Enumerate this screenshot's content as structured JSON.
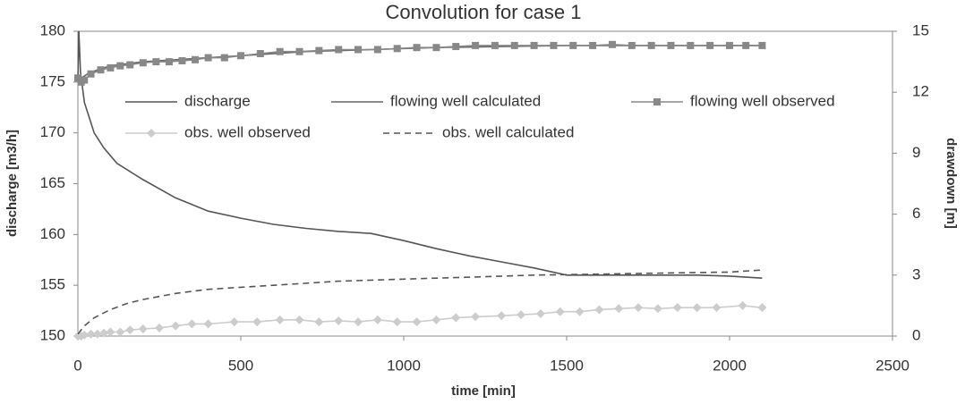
{
  "chart_data": {
    "type": "line",
    "title": "Convolution for case 1",
    "xlabel": "time [min]",
    "ylabel": "discharge [m3/h]",
    "y2label": "drawdown [m]",
    "xlim": [
      0,
      2500
    ],
    "xticks": [
      0,
      500,
      1000,
      1500,
      2000,
      2500
    ],
    "ylim": [
      150,
      180
    ],
    "yticks": [
      150,
      155,
      160,
      165,
      170,
      175,
      180
    ],
    "y2lim": [
      0,
      15
    ],
    "y2ticks": [
      0,
      3,
      6,
      9,
      12,
      15
    ],
    "legend": "upper center",
    "series": [
      {
        "name": "discharge",
        "color": "#555555",
        "axis": "y",
        "dash": "solid",
        "marker": "none",
        "x": [
          0,
          3,
          8,
          20,
          50,
          80,
          120,
          200,
          300,
          400,
          500,
          600,
          700,
          800,
          900,
          1000,
          1100,
          1200,
          1300,
          1400,
          1500,
          1600,
          1700,
          1800,
          1900,
          2000,
          2100
        ],
        "values": [
          175,
          180,
          176,
          173,
          170,
          168.5,
          167,
          165.4,
          163.6,
          162.3,
          161.6,
          161,
          160.6,
          160.3,
          160.1,
          159.4,
          158.6,
          157.9,
          157.3,
          156.7,
          156,
          156,
          156,
          156,
          156,
          155.9,
          155.7
        ]
      },
      {
        "name": "flowing well calculated",
        "color": "#666666",
        "axis": "y2",
        "dash": "solid",
        "marker": "none",
        "x": [
          0,
          10,
          30,
          60,
          100,
          150,
          200,
          300,
          400,
          500,
          700,
          900,
          1100,
          1300,
          1500,
          1700,
          1900,
          2100
        ],
        "values": [
          12.5,
          12.7,
          12.9,
          13.1,
          13.3,
          13.4,
          13.5,
          13.6,
          13.7,
          13.8,
          14.0,
          14.1,
          14.2,
          14.25,
          14.3,
          14.3,
          14.3,
          14.3
        ]
      },
      {
        "name": "flowing well observed",
        "color": "#888888",
        "axis": "y2",
        "dash": "solid",
        "marker": "square",
        "x": [
          0,
          10,
          20,
          40,
          70,
          100,
          130,
          160,
          200,
          240,
          280,
          320,
          360,
          400,
          450,
          500,
          560,
          620,
          680,
          740,
          800,
          860,
          920,
          980,
          1040,
          1100,
          1160,
          1220,
          1280,
          1340,
          1400,
          1460,
          1520,
          1580,
          1640,
          1700,
          1760,
          1820,
          1880,
          1940,
          2000,
          2050,
          2100
        ],
        "values": [
          12.7,
          12.5,
          12.6,
          12.9,
          13.1,
          13.2,
          13.3,
          13.35,
          13.45,
          13.5,
          13.5,
          13.55,
          13.6,
          13.7,
          13.7,
          13.8,
          13.9,
          14,
          14,
          14.05,
          14.1,
          14.1,
          14.1,
          14.15,
          14.2,
          14.2,
          14.25,
          14.3,
          14.3,
          14.3,
          14.3,
          14.3,
          14.3,
          14.3,
          14.35,
          14.3,
          14.3,
          14.3,
          14.3,
          14.3,
          14.3,
          14.3,
          14.3
        ]
      },
      {
        "name": "obs. well observed",
        "color": "#cccccc",
        "axis": "y2",
        "dash": "solid",
        "marker": "diamond",
        "x": [
          0,
          10,
          20,
          40,
          60,
          80,
          100,
          130,
          160,
          200,
          250,
          300,
          350,
          400,
          480,
          550,
          620,
          680,
          740,
          800,
          860,
          920,
          980,
          1040,
          1100,
          1160,
          1220,
          1300,
          1360,
          1420,
          1480,
          1540,
          1600,
          1660,
          1720,
          1780,
          1840,
          1900,
          1960,
          2040,
          2100
        ],
        "values": [
          0,
          0,
          0.05,
          0.1,
          0.1,
          0.15,
          0.2,
          0.2,
          0.3,
          0.35,
          0.4,
          0.5,
          0.6,
          0.6,
          0.7,
          0.7,
          0.8,
          0.8,
          0.7,
          0.75,
          0.7,
          0.8,
          0.7,
          0.7,
          0.8,
          0.9,
          0.95,
          1.0,
          1.05,
          1.1,
          1.2,
          1.2,
          1.3,
          1.35,
          1.4,
          1.35,
          1.4,
          1.4,
          1.4,
          1.5,
          1.4
        ]
      },
      {
        "name": "obs. well calculated",
        "color": "#555555",
        "axis": "y2",
        "dash": "dashed",
        "marker": "none",
        "x": [
          0,
          20,
          50,
          100,
          150,
          200,
          300,
          400,
          500,
          600,
          800,
          1000,
          1200,
          1400,
          1600,
          1800,
          2000,
          2100
        ],
        "values": [
          0.1,
          0.5,
          0.9,
          1.3,
          1.6,
          1.8,
          2.1,
          2.3,
          2.4,
          2.5,
          2.7,
          2.8,
          2.9,
          3.0,
          3.05,
          3.1,
          3.15,
          3.25
        ]
      }
    ]
  }
}
